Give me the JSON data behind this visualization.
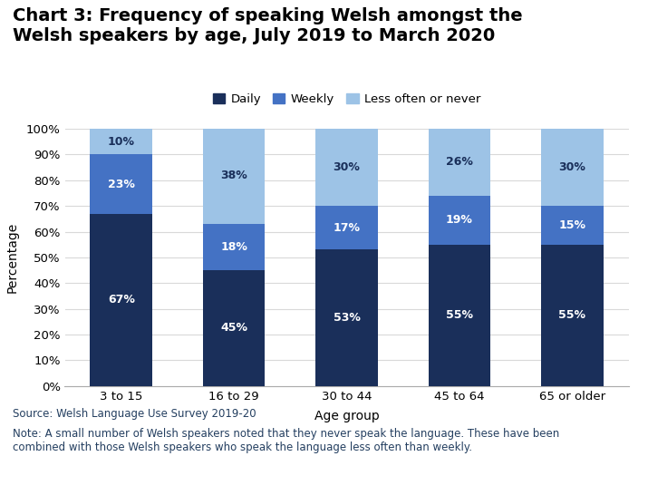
{
  "title_line1": "Chart 3: Frequency of speaking Welsh amongst the",
  "title_line2": "Welsh speakers by age, July 2019 to March 2020",
  "categories": [
    "3 to 15",
    "16 to 29",
    "30 to 44",
    "45 to 64",
    "65 or older"
  ],
  "daily": [
    67,
    45,
    53,
    55,
    55
  ],
  "weekly": [
    23,
    18,
    17,
    19,
    15
  ],
  "less_often": [
    10,
    38,
    30,
    26,
    30
  ],
  "daily_color": "#1a2f5a",
  "weekly_color": "#4472c4",
  "less_often_color": "#9dc3e6",
  "daily_label": "Daily",
  "weekly_label": "Weekly",
  "less_often_label": "Less often or never",
  "xlabel": "Age group",
  "ylabel": "Percentage",
  "ylim": [
    0,
    100
  ],
  "yticks": [
    0,
    10,
    20,
    30,
    40,
    50,
    60,
    70,
    80,
    90,
    100
  ],
  "ytick_labels": [
    "0%",
    "10%",
    "20%",
    "30%",
    "40%",
    "50%",
    "60%",
    "70%",
    "80%",
    "90%",
    "100%"
  ],
  "source_text": "Source: Welsh Language Use Survey 2019-20",
  "note_text": "Note: A small number of Welsh speakers noted that they never speak the language. These have been\ncombined with those Welsh speakers who speak the language less often than weekly.",
  "text_color": "#243f60",
  "bar_width": 0.55,
  "background_color": "#ffffff",
  "grid_color": "#d9d9d9",
  "label_fontsize": 9,
  "title_fontsize": 14
}
